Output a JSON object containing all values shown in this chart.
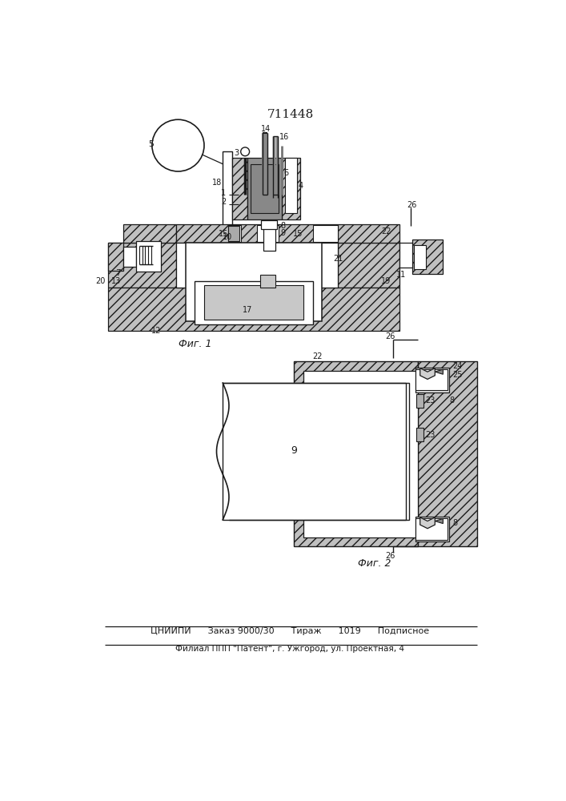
{
  "title": "711448",
  "footer_line1": "ЦНИИПИ      Заказ 9000/30      Тираж      1019      Подписное",
  "footer_line2": "Филиал ППП \"Патент\", г. Ужгород, ул. Проектная, 4",
  "fig1_label": "Фиг. 1",
  "fig2_label": "Фиг. 2",
  "bg_color": "#ffffff",
  "lc": "#1a1a1a",
  "hfc": "#c0c0c0",
  "hfc_dark": "#909090",
  "hfc_light": "#e8e8e8"
}
